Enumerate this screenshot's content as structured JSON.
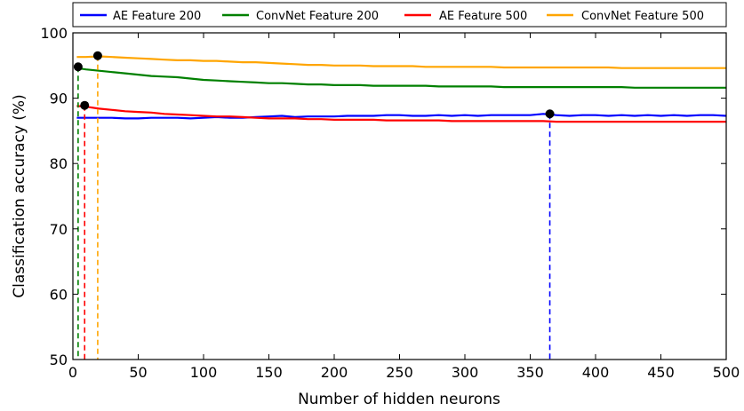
{
  "chart_data": {
    "type": "line",
    "title": "",
    "xlabel": "Number of hidden neurons",
    "ylabel": "Classification accuracy (%)",
    "xlim": [
      0,
      500
    ],
    "ylim": [
      50,
      100
    ],
    "xticks": [
      0,
      50,
      100,
      150,
      200,
      250,
      300,
      350,
      400,
      450,
      500
    ],
    "yticks": [
      50,
      60,
      70,
      80,
      90,
      100
    ],
    "grid": false,
    "legend_placement": "top",
    "series": [
      {
        "name": "AE Feature 200",
        "color": "#0000ff",
        "x": [
          3,
          10,
          20,
          30,
          40,
          50,
          60,
          70,
          80,
          90,
          100,
          110,
          120,
          130,
          140,
          150,
          160,
          170,
          180,
          190,
          200,
          210,
          220,
          230,
          240,
          250,
          260,
          270,
          280,
          290,
          300,
          310,
          320,
          330,
          340,
          350,
          360,
          370,
          380,
          390,
          400,
          410,
          420,
          430,
          440,
          450,
          460,
          470,
          480,
          490,
          500
        ],
        "y": [
          87.0,
          87.0,
          87.0,
          87.0,
          86.9,
          86.9,
          87.0,
          87.0,
          87.0,
          86.9,
          87.0,
          87.1,
          87.0,
          87.0,
          87.1,
          87.2,
          87.3,
          87.1,
          87.2,
          87.2,
          87.2,
          87.3,
          87.3,
          87.3,
          87.4,
          87.4,
          87.3,
          87.3,
          87.4,
          87.3,
          87.4,
          87.3,
          87.4,
          87.4,
          87.4,
          87.4,
          87.6,
          87.4,
          87.3,
          87.4,
          87.4,
          87.3,
          87.4,
          87.3,
          87.4,
          87.3,
          87.4,
          87.3,
          87.4,
          87.4,
          87.3
        ]
      },
      {
        "name": "ConvNet Feature 200",
        "color": "#008000",
        "x": [
          3,
          10,
          20,
          30,
          40,
          50,
          60,
          70,
          80,
          90,
          100,
          110,
          120,
          130,
          140,
          150,
          160,
          170,
          180,
          190,
          200,
          210,
          220,
          230,
          240,
          250,
          260,
          270,
          280,
          290,
          300,
          310,
          320,
          330,
          340,
          350,
          360,
          370,
          380,
          390,
          400,
          410,
          420,
          430,
          440,
          450,
          460,
          470,
          480,
          490,
          500
        ],
        "y": [
          94.6,
          94.4,
          94.2,
          94.0,
          93.8,
          93.6,
          93.4,
          93.3,
          93.2,
          93.0,
          92.8,
          92.7,
          92.6,
          92.5,
          92.4,
          92.3,
          92.3,
          92.2,
          92.1,
          92.1,
          92.0,
          92.0,
          92.0,
          91.9,
          91.9,
          91.9,
          91.9,
          91.9,
          91.8,
          91.8,
          91.8,
          91.8,
          91.8,
          91.7,
          91.7,
          91.7,
          91.7,
          91.7,
          91.7,
          91.7,
          91.7,
          91.7,
          91.7,
          91.6,
          91.6,
          91.6,
          91.6,
          91.6,
          91.6,
          91.6,
          91.6
        ]
      },
      {
        "name": "AE Feature 500",
        "color": "#ff0000",
        "x": [
          3,
          10,
          20,
          30,
          40,
          50,
          60,
          70,
          80,
          90,
          100,
          110,
          120,
          130,
          140,
          150,
          160,
          170,
          180,
          190,
          200,
          210,
          220,
          230,
          240,
          250,
          260,
          270,
          280,
          290,
          300,
          310,
          320,
          330,
          340,
          350,
          360,
          370,
          380,
          390,
          400,
          410,
          420,
          430,
          440,
          450,
          460,
          470,
          480,
          490,
          500
        ],
        "y": [
          88.8,
          88.7,
          88.4,
          88.2,
          88.0,
          87.9,
          87.8,
          87.6,
          87.5,
          87.4,
          87.3,
          87.2,
          87.2,
          87.1,
          87.0,
          86.9,
          86.9,
          86.9,
          86.8,
          86.8,
          86.7,
          86.7,
          86.7,
          86.7,
          86.6,
          86.6,
          86.6,
          86.6,
          86.6,
          86.5,
          86.5,
          86.5,
          86.5,
          86.5,
          86.5,
          86.5,
          86.5,
          86.4,
          86.4,
          86.4,
          86.4,
          86.4,
          86.4,
          86.4,
          86.4,
          86.4,
          86.4,
          86.4,
          86.4,
          86.4,
          86.4
        ]
      },
      {
        "name": "ConvNet Feature 500",
        "color": "#ffa500",
        "x": [
          3,
          10,
          20,
          30,
          40,
          50,
          60,
          70,
          80,
          90,
          100,
          110,
          120,
          130,
          140,
          150,
          160,
          170,
          180,
          190,
          200,
          210,
          220,
          230,
          240,
          250,
          260,
          270,
          280,
          290,
          300,
          310,
          320,
          330,
          340,
          350,
          360,
          370,
          380,
          390,
          400,
          410,
          420,
          430,
          440,
          450,
          460,
          470,
          480,
          490,
          500
        ],
        "y": [
          96.3,
          96.3,
          96.4,
          96.3,
          96.2,
          96.1,
          96.0,
          95.9,
          95.8,
          95.8,
          95.7,
          95.7,
          95.6,
          95.5,
          95.5,
          95.4,
          95.3,
          95.2,
          95.1,
          95.1,
          95.0,
          95.0,
          95.0,
          94.9,
          94.9,
          94.9,
          94.9,
          94.8,
          94.8,
          94.8,
          94.8,
          94.8,
          94.8,
          94.7,
          94.7,
          94.7,
          94.7,
          94.7,
          94.7,
          94.7,
          94.7,
          94.7,
          94.6,
          94.6,
          94.6,
          94.6,
          94.6,
          94.6,
          94.6,
          94.6,
          94.6
        ]
      }
    ],
    "highlight_points": [
      {
        "series": "AE Feature 200",
        "x": 365,
        "y": 87.6,
        "color": "#0000ff"
      },
      {
        "series": "ConvNet Feature 200",
        "x": 4,
        "y": 94.8,
        "color": "#008000"
      },
      {
        "series": "AE Feature 500",
        "x": 9,
        "y": 88.9,
        "color": "#ff0000"
      },
      {
        "series": "ConvNet Feature 500",
        "x": 19,
        "y": 96.5,
        "color": "#ffa500"
      }
    ]
  }
}
